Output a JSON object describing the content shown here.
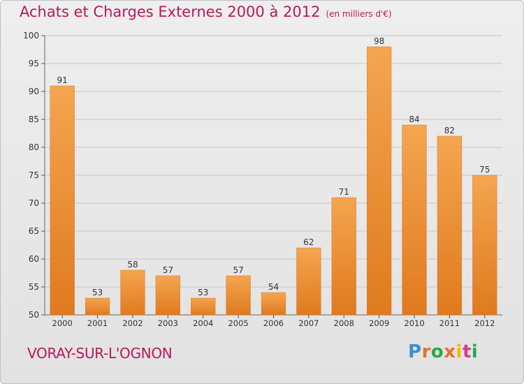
{
  "title": "Achats et Charges Externes 2000 à 2012",
  "unit_note": "(en milliers d'€)",
  "place": "VORAY-SUR-L'OGNON",
  "logo": [
    "P",
    "r",
    "o",
    "x",
    "i",
    "t",
    "i"
  ],
  "colors": {
    "bar_top": "#f5a550",
    "bar_bottom": "#e07a1e",
    "title": "#b8185a",
    "grid": "#c8c8c8"
  },
  "chart_data": {
    "type": "bar",
    "categories": [
      "2000",
      "2001",
      "2002",
      "2003",
      "2004",
      "2005",
      "2006",
      "2007",
      "2008",
      "2009",
      "2010",
      "2011",
      "2012"
    ],
    "values": [
      91,
      53,
      58,
      57,
      53,
      57,
      54,
      62,
      71,
      98,
      84,
      82,
      75
    ],
    "ylim": [
      50,
      100
    ],
    "yticks": [
      50,
      55,
      60,
      65,
      70,
      75,
      80,
      85,
      90,
      95,
      100
    ],
    "grid": true,
    "title": "Achats et Charges Externes 2000 à 2012",
    "ylabel": "",
    "xlabel": ""
  }
}
